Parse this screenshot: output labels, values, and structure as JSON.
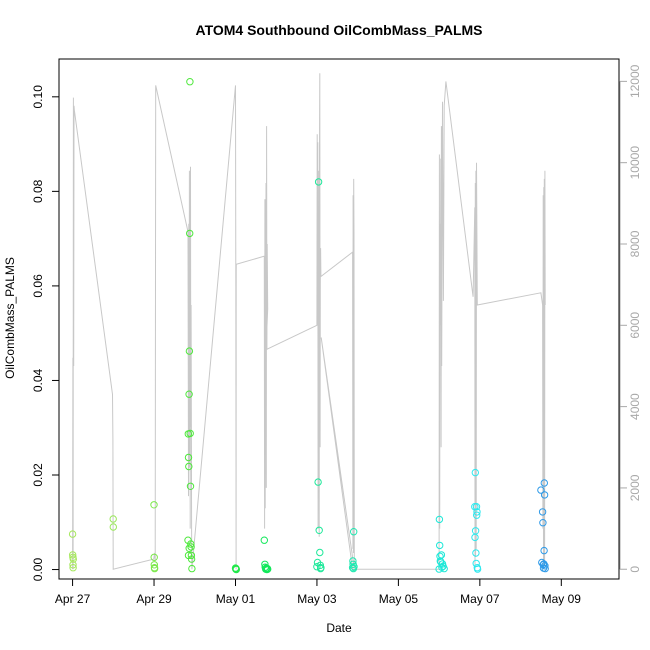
{
  "chart_data": {
    "type": "scatter",
    "title": "ATOM4 Southbound OilCombMass_PALMS",
    "xlabel": "Date",
    "ylabel": "OilCombMass_PALMS",
    "xlim": [
      "2018-04-26T16:00",
      "2018-05-10T10:00"
    ],
    "ylim": [
      -0.002,
      0.108
    ],
    "y2lim": [
      -240,
      12550
    ],
    "grid": false,
    "x_ticks": [
      {
        "date": "2018-04-27T00:00",
        "label": "Apr 27"
      },
      {
        "date": "2018-04-29T00:00",
        "label": "Apr 29"
      },
      {
        "date": "2018-05-01T00:00",
        "label": "May 01"
      },
      {
        "date": "2018-05-03T00:00",
        "label": "May 03"
      },
      {
        "date": "2018-05-05T00:00",
        "label": "May 05"
      },
      {
        "date": "2018-05-07T00:00",
        "label": "May 07"
      },
      {
        "date": "2018-05-09T00:00",
        "label": "May 09"
      }
    ],
    "y_ticks": [
      {
        "value": 0.0,
        "label": "0.00"
      },
      {
        "value": 0.02,
        "label": "0.02"
      },
      {
        "value": 0.04,
        "label": "0.04"
      },
      {
        "value": 0.06,
        "label": "0.06"
      },
      {
        "value": 0.08,
        "label": "0.08"
      },
      {
        "value": 0.1,
        "label": "0.10"
      }
    ],
    "y2_ticks": [
      {
        "value": 0,
        "label": "0"
      },
      {
        "value": 2000,
        "label": "2000"
      },
      {
        "value": 4000,
        "label": "4000"
      },
      {
        "value": 6000,
        "label": "6000"
      },
      {
        "value": 8000,
        "label": "8000"
      },
      {
        "value": 10000,
        "label": "10000"
      },
      {
        "value": 12000,
        "label": "12000"
      }
    ],
    "colors": {
      "altitude_line": "#c8c8c8",
      "frame": "#000000"
    },
    "altitude_trace": [
      [
        "2018-04-27T00:00",
        0
      ],
      [
        "2018-04-27T00:10",
        5200
      ],
      [
        "2018-04-27T00:20",
        0
      ],
      [
        "2018-04-27T00:30",
        11600
      ],
      [
        "2018-04-27T00:40",
        5000
      ],
      [
        "2018-04-27T00:50",
        11400
      ],
      [
        "2018-04-27T01:00",
        11300
      ],
      [
        "2018-04-27T23:30",
        4300
      ],
      [
        "2018-04-27T23:45",
        3200
      ],
      [
        "2018-04-27T23:55",
        0
      ],
      [
        "2018-04-28T23:50",
        250
      ],
      [
        "2018-04-29T00:20",
        400
      ],
      [
        "2018-04-29T00:40",
        200
      ],
      [
        "2018-04-29T01:00",
        11900
      ],
      [
        "2018-04-29T20:00",
        8300
      ],
      [
        "2018-04-29T20:20",
        1800
      ],
      [
        "2018-04-29T20:30",
        8500
      ],
      [
        "2018-04-29T20:40",
        2500
      ],
      [
        "2018-04-29T20:50",
        9800
      ],
      [
        "2018-04-29T21:00",
        3000
      ],
      [
        "2018-04-29T21:10",
        8700
      ],
      [
        "2018-04-29T21:20",
        1000
      ],
      [
        "2018-04-29T21:30",
        9900
      ],
      [
        "2018-04-29T21:40",
        3500
      ],
      [
        "2018-04-29T21:50",
        6500
      ],
      [
        "2018-04-29T22:10",
        1000
      ],
      [
        "2018-04-29T22:20",
        0
      ],
      [
        "2018-05-01T00:00",
        11900
      ],
      [
        "2018-05-01T00:10",
        7300
      ],
      [
        "2018-05-01T00:20",
        0
      ],
      [
        "2018-05-01T00:25",
        7300
      ],
      [
        "2018-05-01T00:30",
        7500
      ],
      [
        "2018-05-01T17:00",
        7700
      ],
      [
        "2018-05-01T17:10",
        1000
      ],
      [
        "2018-05-01T17:20",
        9100
      ],
      [
        "2018-05-01T17:30",
        1500
      ],
      [
        "2018-05-01T17:40",
        9100
      ],
      [
        "2018-05-01T17:50",
        4800
      ],
      [
        "2018-05-01T18:00",
        9500
      ],
      [
        "2018-05-01T18:10",
        2000
      ],
      [
        "2018-05-01T18:20",
        10900
      ],
      [
        "2018-05-01T18:30",
        5400
      ],
      [
        "2018-05-01T18:40",
        8000
      ],
      [
        "2018-05-01T19:00",
        6400
      ],
      [
        "2018-05-01T18:00",
        5400
      ],
      [
        "2018-05-03T00:00",
        6000
      ],
      [
        "2018-05-03T00:10",
        10700
      ],
      [
        "2018-05-03T00:20",
        6000
      ],
      [
        "2018-05-03T00:30",
        10500
      ],
      [
        "2018-05-03T00:40",
        1000
      ],
      [
        "2018-05-03T00:50",
        9800
      ],
      [
        "2018-05-03T01:00",
        5700
      ],
      [
        "2018-05-03T01:10",
        6300
      ],
      [
        "2018-05-03T01:20",
        800
      ],
      [
        "2018-05-03T01:30",
        10300
      ],
      [
        "2018-05-03T01:40",
        12200
      ],
      [
        "2018-05-03T01:50",
        3000
      ],
      [
        "2018-05-03T02:00",
        7000
      ],
      [
        "2018-05-03T02:10",
        7900
      ],
      [
        "2018-05-03T02:20",
        7200
      ],
      [
        "2018-05-03T21:00",
        7800
      ],
      [
        "2018-05-03T21:10",
        500
      ],
      [
        "2018-05-03T21:20",
        9200
      ],
      [
        "2018-05-03T21:30",
        400
      ],
      [
        "2018-05-03T21:40",
        9600
      ],
      [
        "2018-05-03T21:50",
        8200
      ],
      [
        "2018-05-03T22:00",
        0
      ],
      [
        "2018-05-03T02:30",
        5700
      ],
      [
        "2018-05-03T21:00",
        0
      ],
      [
        "2018-05-06T00:00",
        0
      ],
      [
        "2018-05-06T00:10",
        10200
      ],
      [
        "2018-05-06T00:20",
        1000
      ],
      [
        "2018-05-06T00:30",
        8500
      ],
      [
        "2018-05-06T00:40",
        6000
      ],
      [
        "2018-05-06T01:00",
        10100
      ],
      [
        "2018-05-06T01:10",
        3000
      ],
      [
        "2018-05-06T01:20",
        10900
      ],
      [
        "2018-05-06T01:30",
        5000
      ],
      [
        "2018-05-06T02:00",
        11500
      ],
      [
        "2018-05-06T02:30",
        6600
      ],
      [
        "2018-05-06T03:00",
        11400
      ],
      [
        "2018-05-06T04:00",
        12000
      ],
      [
        "2018-05-06T20:00",
        6700
      ],
      [
        "2018-05-06T21:00",
        8900
      ],
      [
        "2018-05-06T21:10",
        0
      ],
      [
        "2018-05-06T21:20",
        9500
      ],
      [
        "2018-05-06T21:30",
        300
      ],
      [
        "2018-05-06T21:40",
        9800
      ],
      [
        "2018-05-06T21:50",
        500
      ],
      [
        "2018-05-06T22:00",
        10000
      ],
      [
        "2018-05-06T22:30",
        6500
      ],
      [
        "2018-05-08T12:00",
        6800
      ],
      [
        "2018-05-08T13:00",
        6500
      ],
      [
        "2018-05-08T13:10",
        1000
      ],
      [
        "2018-05-08T13:20",
        9200
      ],
      [
        "2018-05-08T13:30",
        0
      ],
      [
        "2018-05-08T13:40",
        9400
      ],
      [
        "2018-05-08T13:50",
        200
      ],
      [
        "2018-05-08T14:00",
        9600
      ],
      [
        "2018-05-08T14:10",
        100
      ],
      [
        "2018-05-08T14:20",
        9800
      ],
      [
        "2018-05-08T14:30",
        6500
      ]
    ],
    "points": [
      [
        "2018-04-27T00:00",
        0.0075,
        "#a5e85b"
      ],
      [
        "2018-04-27T00:05",
        0.0031,
        "#a5e85b"
      ],
      [
        "2018-04-27T00:10",
        0.0026,
        "#a5e85b"
      ],
      [
        "2018-04-27T00:15",
        0.001,
        "#a5e85b"
      ],
      [
        "2018-04-27T00:20",
        0.0004,
        "#a5e85b"
      ],
      [
        "2018-04-27T00:25",
        0.0022,
        "#a5e85b"
      ],
      [
        "2018-04-27T23:55",
        0.0107,
        "#9be85b"
      ],
      [
        "2018-04-28T00:00",
        0.009,
        "#9be85b"
      ],
      [
        "2018-04-29T00:00",
        0.0137,
        "#7be84a"
      ],
      [
        "2018-04-29T00:05",
        0.0026,
        "#7be84a"
      ],
      [
        "2018-04-29T00:10",
        0.001,
        "#7be84a"
      ],
      [
        "2018-04-29T00:15",
        0.0004,
        "#7be84a"
      ],
      [
        "2018-04-29T00:20",
        0.0002,
        "#7be84a"
      ],
      [
        "2018-04-29T20:00",
        0.0062,
        "#4ee83c"
      ],
      [
        "2018-04-29T20:10",
        0.0287,
        "#4ee83c"
      ],
      [
        "2018-04-29T20:20",
        0.0237,
        "#4ee83c"
      ],
      [
        "2018-04-29T20:30",
        0.0218,
        "#4ee83c"
      ],
      [
        "2018-04-29T20:40",
        0.0371,
        "#4ee83c"
      ],
      [
        "2018-04-29T20:50",
        0.0462,
        "#4ee83c"
      ],
      [
        "2018-04-29T21:00",
        0.0711,
        "#4ee83c"
      ],
      [
        "2018-04-29T21:10",
        0.1032,
        "#4ee83c"
      ],
      [
        "2018-04-29T21:20",
        0.0288,
        "#4ee83c"
      ],
      [
        "2018-04-29T21:30",
        0.0176,
        "#4ee83c"
      ],
      [
        "2018-04-29T21:40",
        0.0054,
        "#4ee83c"
      ],
      [
        "2018-04-29T21:50",
        0.0048,
        "#4ee83c"
      ],
      [
        "2018-04-29T22:00",
        0.003,
        "#4ee83c"
      ],
      [
        "2018-04-29T22:10",
        0.0022,
        "#4ee83c"
      ],
      [
        "2018-04-29T22:20",
        0.0002,
        "#4ee83c"
      ],
      [
        "2018-04-29T20:20",
        0.003,
        "#4ee83c"
      ],
      [
        "2018-04-29T20:45",
        0.0045,
        "#4ee83c"
      ],
      [
        "2018-05-01T00:00",
        0.0003,
        "#22e84a"
      ],
      [
        "2018-05-01T00:10",
        0.0001,
        "#22e84a"
      ],
      [
        "2018-05-01T00:20",
        0.0002,
        "#22e84a"
      ],
      [
        "2018-05-01T00:30",
        0.0,
        "#22e84a"
      ],
      [
        "2018-05-01T17:00",
        0.0062,
        "#12e85a"
      ],
      [
        "2018-05-01T17:20",
        0.0011,
        "#12e85a"
      ],
      [
        "2018-05-01T17:30",
        0.0005,
        "#12e85a"
      ],
      [
        "2018-05-01T17:50",
        0.0001,
        "#12e85a"
      ],
      [
        "2018-05-01T18:10",
        0.0003,
        "#12e85a"
      ],
      [
        "2018-05-01T18:30",
        0.0,
        "#12e85a"
      ],
      [
        "2018-05-01T19:00",
        0.0001,
        "#12e85a"
      ],
      [
        "2018-05-01T18:50",
        0.0002,
        "#12e85a"
      ],
      [
        "2018-05-03T00:00",
        0.0006,
        "#1ee89a"
      ],
      [
        "2018-05-03T00:20",
        0.0015,
        "#1ee89a"
      ],
      [
        "2018-05-03T00:40",
        0.0185,
        "#1ee89a"
      ],
      [
        "2018-05-03T01:00",
        0.082,
        "#1ee89a"
      ],
      [
        "2018-05-03T01:20",
        0.0083,
        "#1ee89a"
      ],
      [
        "2018-05-03T01:40",
        0.0036,
        "#1ee89a"
      ],
      [
        "2018-05-03T02:00",
        0.0009,
        "#1ee89a"
      ],
      [
        "2018-05-03T02:10",
        0.0002,
        "#1ee89a"
      ],
      [
        "2018-05-03T02:20",
        0.0004,
        "#1ee89a"
      ],
      [
        "2018-05-03T21:00",
        0.0004,
        "#1ee8b0"
      ],
      [
        "2018-05-03T21:10",
        0.0018,
        "#1ee8b0"
      ],
      [
        "2018-05-03T21:20",
        0.0011,
        "#1ee8b0"
      ],
      [
        "2018-05-03T21:30",
        0.0002,
        "#1ee8b0"
      ],
      [
        "2018-05-03T21:40",
        0.008,
        "#1ee8b0"
      ],
      [
        "2018-05-03T21:50",
        0.0006,
        "#1ee8b0"
      ],
      [
        "2018-05-06T00:00",
        0.0001,
        "#1ee8d8"
      ],
      [
        "2018-05-06T00:10",
        0.0106,
        "#1ee8d8"
      ],
      [
        "2018-05-06T00:20",
        0.0051,
        "#1ee8d8"
      ],
      [
        "2018-05-06T00:30",
        0.0028,
        "#1ee8d8"
      ],
      [
        "2018-05-06T00:40",
        0.0018,
        "#1ee8d8"
      ],
      [
        "2018-05-06T01:00",
        0.0016,
        "#1ee8d8"
      ],
      [
        "2018-05-06T01:20",
        0.0031,
        "#1ee8d8"
      ],
      [
        "2018-05-06T01:40",
        0.0005,
        "#1ee8d8"
      ],
      [
        "2018-05-06T02:00",
        0.0012,
        "#1ee8d8"
      ],
      [
        "2018-05-06T02:20",
        0.0007,
        "#1ee8d8"
      ],
      [
        "2018-05-06T03:00",
        0.0002,
        "#1ee8d8"
      ],
      [
        "2018-05-06T21:00",
        0.0133,
        "#2ee8ee"
      ],
      [
        "2018-05-06T21:10",
        0.0068,
        "#2ee8ee"
      ],
      [
        "2018-05-06T21:20",
        0.0205,
        "#2ee8ee"
      ],
      [
        "2018-05-06T21:30",
        0.0082,
        "#2ee8ee"
      ],
      [
        "2018-05-06T21:40",
        0.0035,
        "#2ee8ee"
      ],
      [
        "2018-05-06T21:50",
        0.0013,
        "#2ee8ee"
      ],
      [
        "2018-05-06T22:00",
        0.0133,
        "#2ee8ee"
      ],
      [
        "2018-05-06T22:10",
        0.0115,
        "#2ee8ee"
      ],
      [
        "2018-05-06T22:20",
        0.0122,
        "#2ee8ee"
      ],
      [
        "2018-05-06T22:30",
        0.0004,
        "#2ee8ee"
      ],
      [
        "2018-05-06T22:40",
        0.0001,
        "#2ee8ee"
      ],
      [
        "2018-05-08T12:00",
        0.0168,
        "#2e9ae8"
      ],
      [
        "2018-05-08T12:30",
        0.0015,
        "#2e9ae8"
      ],
      [
        "2018-05-08T13:00",
        0.0122,
        "#2e9ae8"
      ],
      [
        "2018-05-08T13:10",
        0.0099,
        "#2e9ae8"
      ],
      [
        "2018-05-08T13:20",
        0.001,
        "#2e9ae8"
      ],
      [
        "2018-05-08T13:30",
        0.0003,
        "#2e9ae8"
      ],
      [
        "2018-05-08T13:40",
        0.0012,
        "#2e9ae8"
      ],
      [
        "2018-05-08T13:50",
        0.004,
        "#2e9ae8"
      ],
      [
        "2018-05-08T14:00",
        0.0183,
        "#2e9ae8"
      ],
      [
        "2018-05-08T14:10",
        0.0158,
        "#2e9ae8"
      ],
      [
        "2018-05-08T14:20",
        0.0008,
        "#2e9ae8"
      ],
      [
        "2018-05-08T14:30",
        0.0002,
        "#2e9ae8"
      ]
    ]
  }
}
